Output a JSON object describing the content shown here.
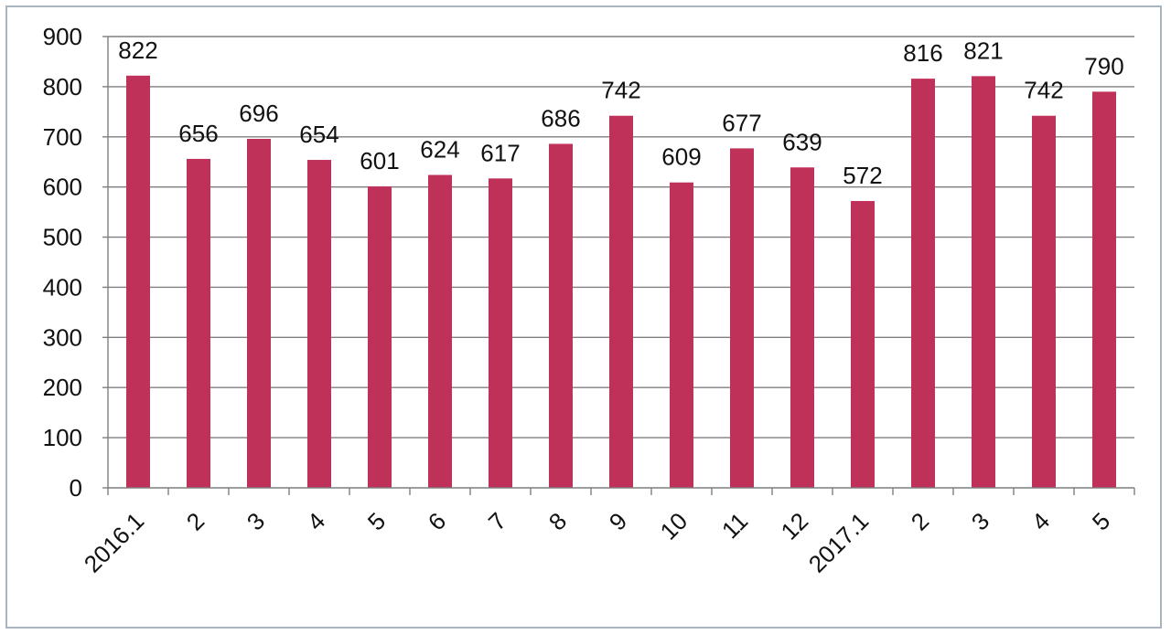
{
  "chart_data": {
    "type": "bar",
    "categories": [
      "2016.1",
      "2",
      "3",
      "4",
      "5",
      "6",
      "7",
      "8",
      "9",
      "10",
      "11",
      "12",
      "2017.1",
      "2",
      "3",
      "4",
      "5"
    ],
    "values": [
      822,
      656,
      696,
      654,
      601,
      624,
      617,
      686,
      742,
      609,
      677,
      639,
      572,
      816,
      821,
      742,
      790
    ],
    "data_labels": [
      "822",
      "656",
      "696",
      "654",
      "601",
      "624",
      "617",
      "686",
      "742",
      "609",
      "677",
      "639",
      "572",
      "816",
      "821",
      "742",
      "790"
    ],
    "y_ticks": [
      "0",
      "100",
      "200",
      "300",
      "400",
      "500",
      "600",
      "700",
      "800",
      "900"
    ],
    "ylim": [
      0,
      900
    ],
    "title": "",
    "xlabel": "",
    "ylabel": "",
    "grid": true,
    "legend": "none",
    "bar_color": "#c0315a",
    "grid_color": "#7f7f7f"
  }
}
